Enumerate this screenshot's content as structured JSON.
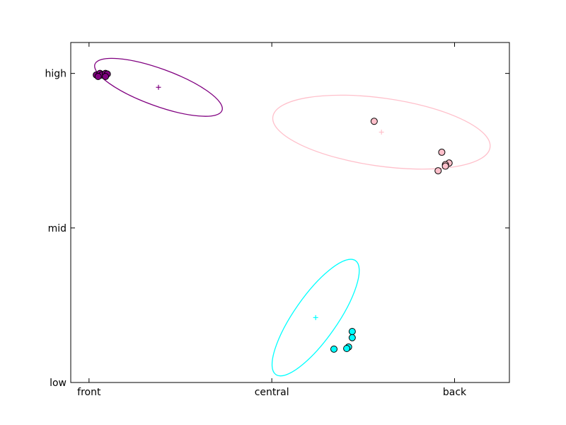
{
  "chart_data": {
    "type": "scatter",
    "title": "",
    "xlabel": "",
    "ylabel": "",
    "xlim": [
      -0.05,
      1.15
    ],
    "ylim": [
      0,
      1.1
    ],
    "x_ticks": [
      {
        "value": 0,
        "label": "front"
      },
      {
        "value": 0.5,
        "label": "central"
      },
      {
        "value": 1,
        "label": "back"
      }
    ],
    "y_ticks": [
      {
        "value": 0,
        "label": "low"
      },
      {
        "value": 0.5,
        "label": "mid"
      },
      {
        "value": 1,
        "label": "high"
      }
    ],
    "grid": false,
    "legend": "none",
    "series": [
      {
        "color": "#800080",
        "points": [
          [
            0.02,
            0.995
          ],
          [
            0.03,
            1.0
          ],
          [
            0.035,
            0.995
          ],
          [
            0.045,
            1.0
          ],
          [
            0.05,
            0.998
          ],
          [
            0.045,
            0.99
          ],
          [
            0.025,
            0.99
          ]
        ],
        "mean": [
          0.19,
          0.955
        ],
        "ellipse": {
          "center": [
            0.19,
            0.955
          ],
          "rx": 0.185,
          "ry": 0.06,
          "angle_deg": 20
        }
      },
      {
        "color": "#ffc0cb",
        "points": [
          [
            0.78,
            0.845
          ],
          [
            0.965,
            0.745
          ],
          [
            0.985,
            0.71
          ],
          [
            0.975,
            0.705
          ],
          [
            0.955,
            0.685
          ],
          [
            0.975,
            0.7
          ]
        ],
        "mean": [
          0.8,
          0.81
        ],
        "ellipse": {
          "center": [
            0.8,
            0.81
          ],
          "rx": 0.3,
          "ry": 0.11,
          "angle_deg": 8
        }
      },
      {
        "color": "#00ffff",
        "points": [
          [
            0.72,
            0.165
          ],
          [
            0.72,
            0.145
          ],
          [
            0.71,
            0.115
          ],
          [
            0.705,
            0.11
          ],
          [
            0.67,
            0.108
          ]
        ],
        "mean": [
          0.62,
          0.21
        ],
        "ellipse": {
          "center": [
            0.62,
            0.21
          ],
          "rx": 0.19,
          "ry": 0.07,
          "angle_deg": -55
        }
      }
    ]
  }
}
